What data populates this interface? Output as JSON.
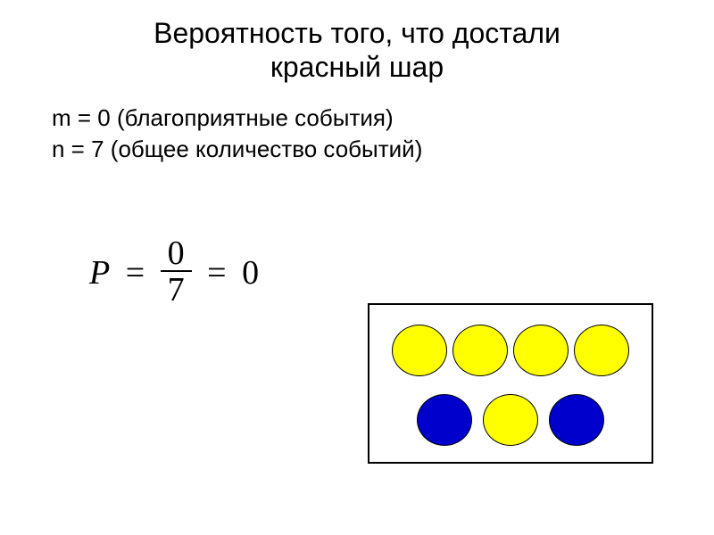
{
  "title_line1": "Вероятность того, что достали",
  "title_line2": "красный  шар",
  "line1_var": "m = 0",
  "line1_desc": "  (благоприятные события)",
  "line2_var": "n = 7",
  "line2_desc": "   (общее количество событий)",
  "formula": {
    "variable": "P",
    "equals1": "=",
    "numerator": "0",
    "denominator": "7",
    "equals2": "=",
    "result": "0"
  },
  "diagram": {
    "type": "balls",
    "border_color": "#000000",
    "background_color": "#ffffff",
    "ball_colors": {
      "yellow": "#ffff00",
      "blue": "#0000cc"
    },
    "row1": [
      "yellow",
      "yellow",
      "yellow",
      "yellow"
    ],
    "row2": [
      "blue",
      "yellow",
      "blue"
    ],
    "ball_size": 62
  },
  "colors": {
    "text": "#000000",
    "background": "#ffffff"
  },
  "fonts": {
    "title_size": 32,
    "body_size": 26,
    "formula_size": 38
  }
}
